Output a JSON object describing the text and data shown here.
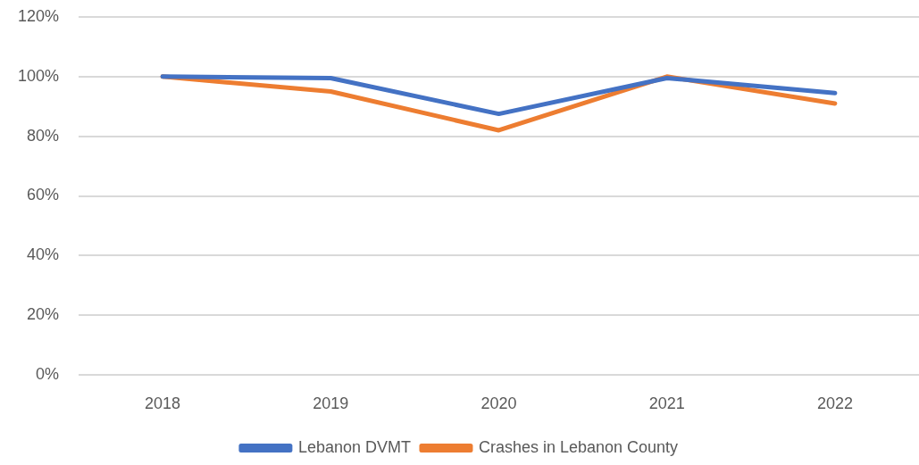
{
  "chart_data": {
    "type": "line",
    "categories": [
      "2018",
      "2019",
      "2020",
      "2021",
      "2022"
    ],
    "series": [
      {
        "name": "Lebanon DVMT",
        "color": "#4472c4",
        "values": [
          100,
          99.5,
          87.5,
          99.5,
          94.5
        ]
      },
      {
        "name": "Crashes in Lebanon County",
        "color": "#ed7d31",
        "values": [
          100,
          95,
          82,
          100,
          91
        ]
      }
    ],
    "ylim": [
      0,
      120
    ],
    "yticks": [
      {
        "value": 0,
        "label": "0%"
      },
      {
        "value": 20,
        "label": "20%"
      },
      {
        "value": 40,
        "label": "40%"
      },
      {
        "value": 60,
        "label": "60%"
      },
      {
        "value": 80,
        "label": "80%"
      },
      {
        "value": 100,
        "label": "100%"
      },
      {
        "value": 120,
        "label": "120%"
      }
    ],
    "grid": "y",
    "legend": "bottom",
    "marker": "none",
    "line_style": "solid"
  }
}
